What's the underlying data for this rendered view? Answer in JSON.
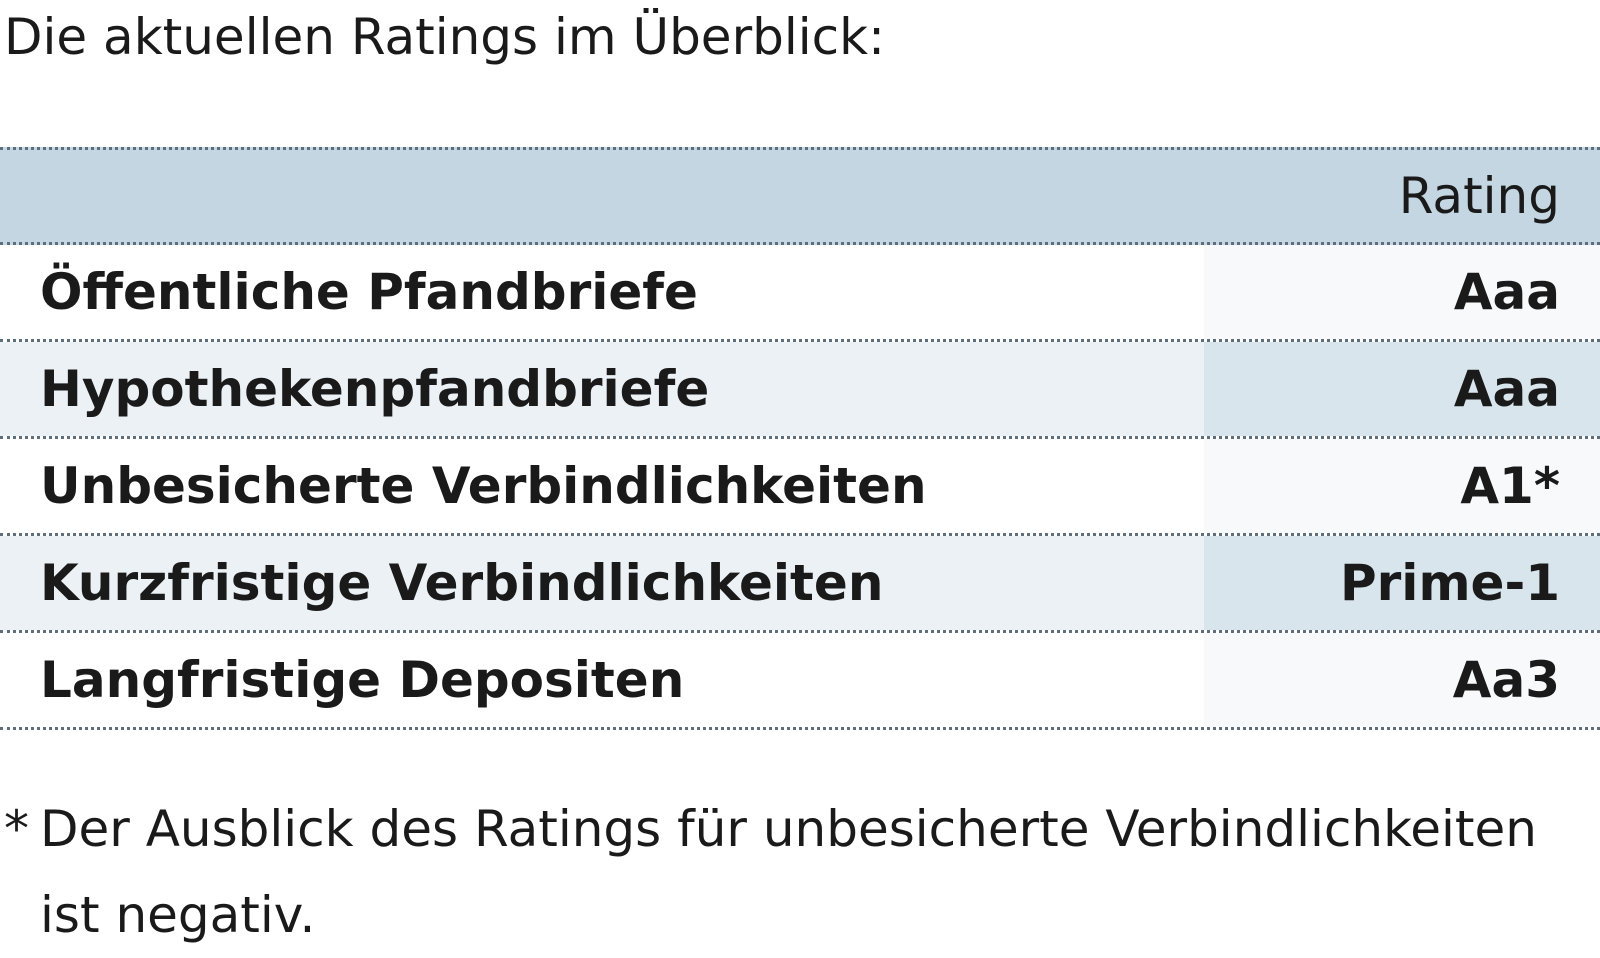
{
  "intro": "Die aktuellen Ratings im Überblick:",
  "table": {
    "header": {
      "label": "",
      "value": "Rating"
    },
    "rows": [
      {
        "label": "Öffentliche Pfandbriefe",
        "value": "Aaa"
      },
      {
        "label": "Hypothekenpfandbriefe",
        "value": "Aaa"
      },
      {
        "label": "Unbesicherte Verbindlichkeiten",
        "value": "A1*"
      },
      {
        "label": "Kurzfristige Verbindlichkeiten",
        "value": "Prime-1"
      },
      {
        "label": "Langfristige Depositen",
        "value": "Aa3"
      }
    ]
  },
  "footnote": {
    "marker": "*",
    "line1": "Der Ausblick des Ratings für unbesicherte Verbindlichkeiten",
    "line2": "ist negativ."
  },
  "colors": {
    "header_bg": "#c3d6e1",
    "row_alt_bg": "#ecf1f5",
    "value_alt_bg": "#d8e5ed",
    "text": "#1a1a1a"
  }
}
